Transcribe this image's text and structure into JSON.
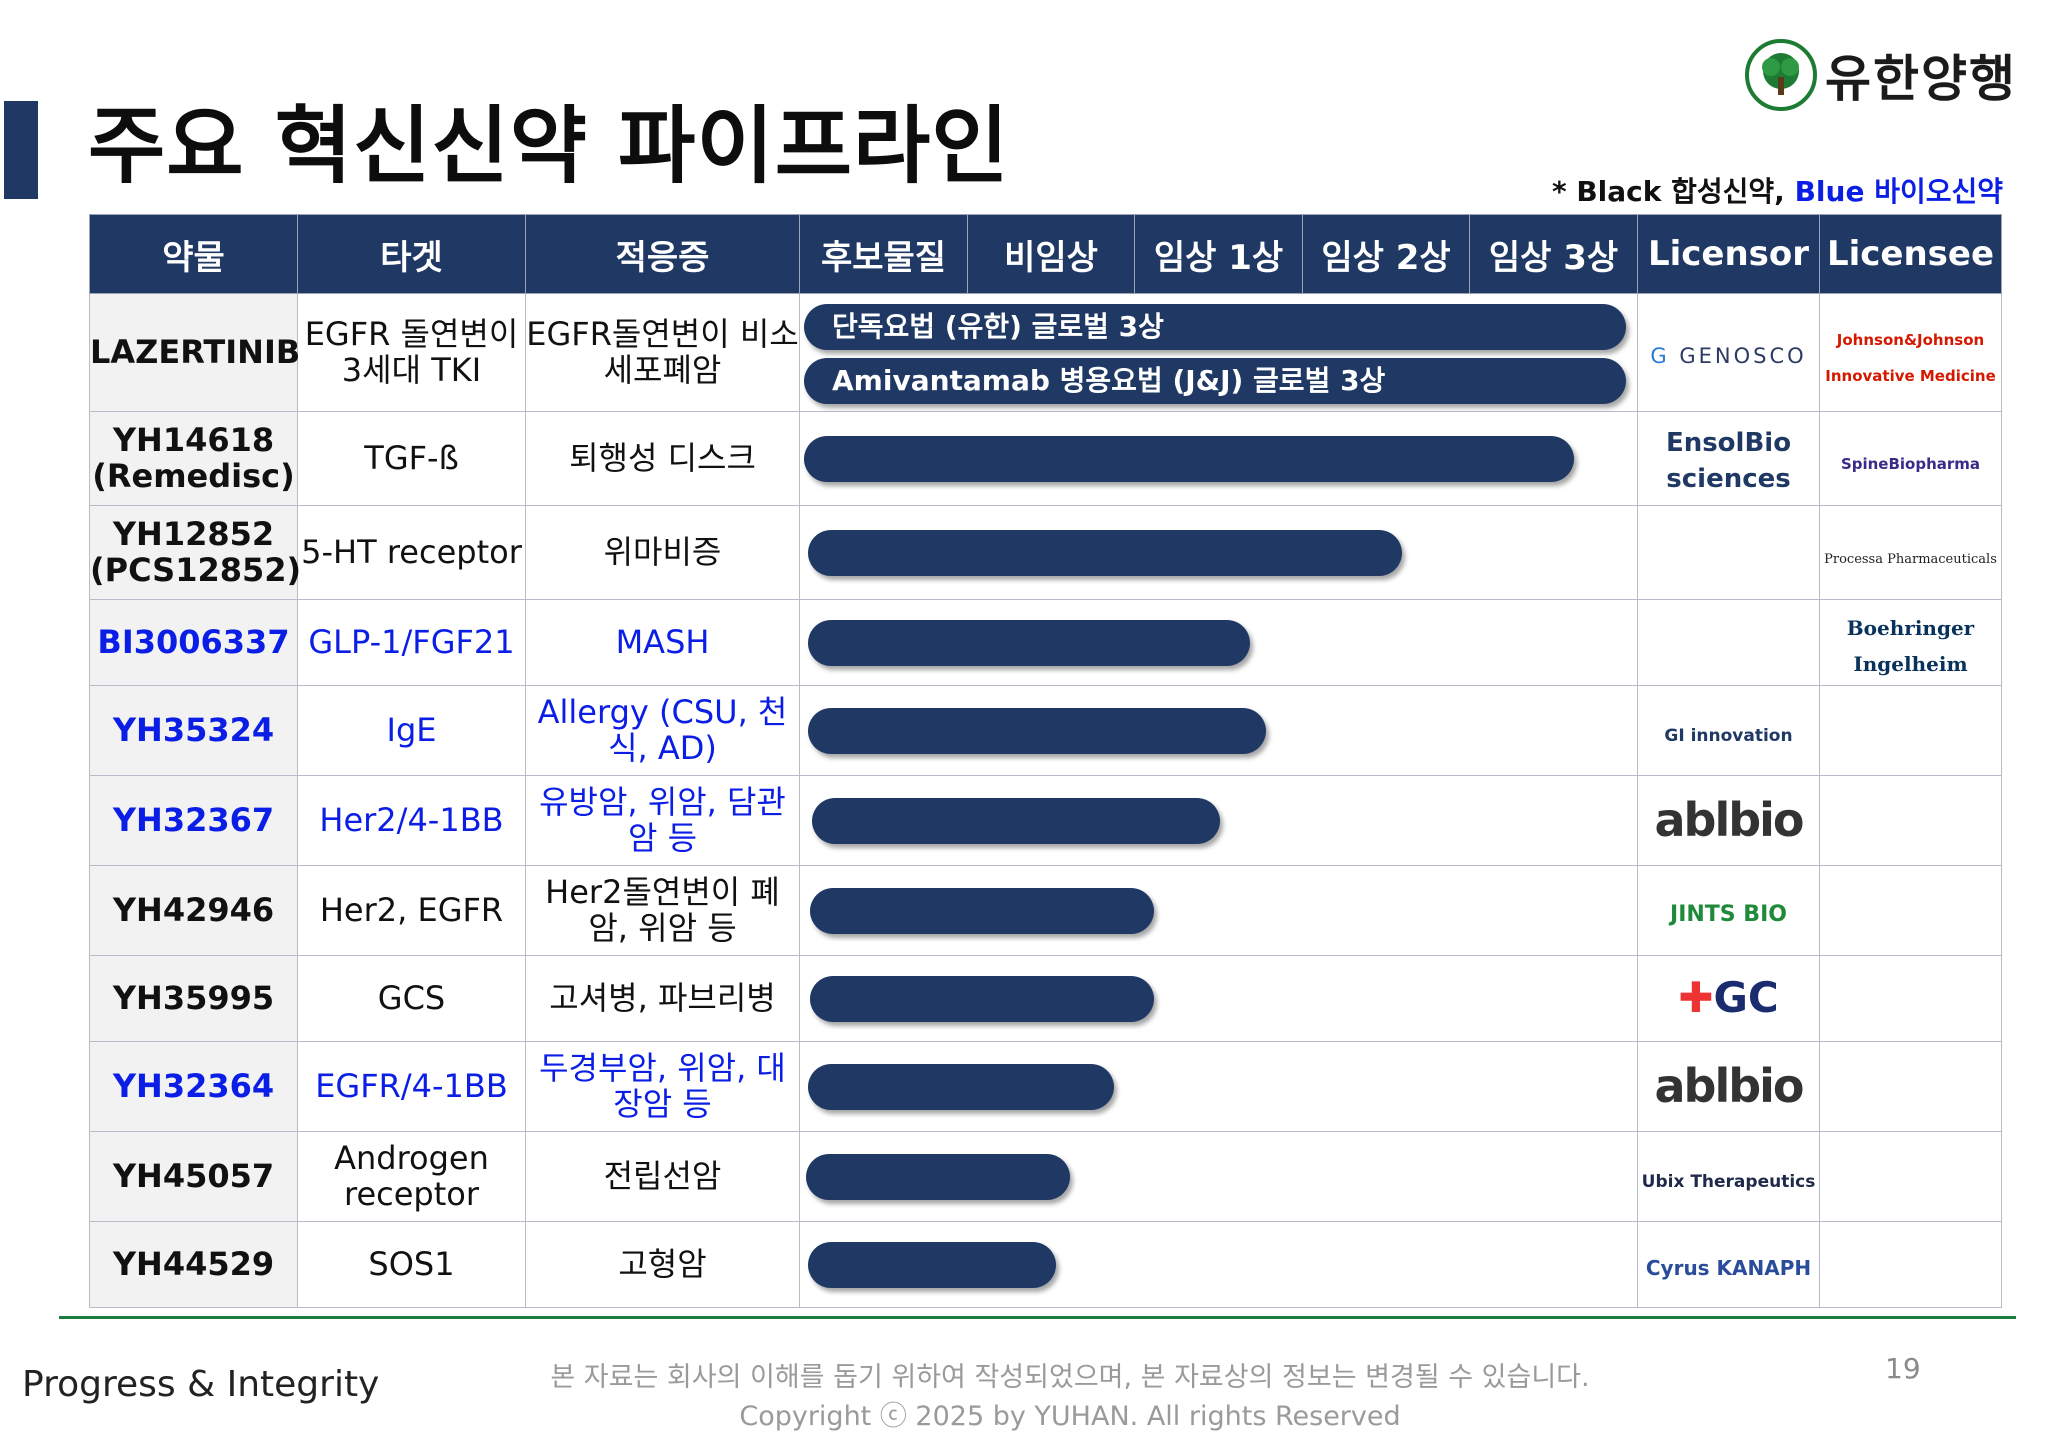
{
  "title": "주요 혁신신약 파이프라인",
  "company_logo_text": "유한양행",
  "legend": {
    "star": "*",
    "black_label": "Black 합성신약,",
    "blue_label": "Blue 바이오신약"
  },
  "headers": [
    "약물",
    "타겟",
    "적응증",
    "후보물질",
    "비임상",
    "임상 1상",
    "임상 2상",
    "임상 3상",
    "Licensor",
    "Licensee"
  ],
  "rows": [
    {
      "drug": "LAZERTINIB",
      "target": "EGFR 돌연변이 3세대 TKI",
      "indication": "EGFR돌연변이 비소세포폐암",
      "type": "black",
      "bars": [
        {
          "label": "단독요법 (유한) 글로벌 3상",
          "progress": "임상 3상"
        },
        {
          "label": "Amivantamab 병용요법 (J&J)  글로벌 3상",
          "progress": "임상 3상"
        }
      ],
      "licensor": "GENOSCO",
      "licensee": "Johnson&Johnson Innovative Medicine"
    },
    {
      "drug": "YH14618 (Remedisc)",
      "target": "TGF-ß",
      "indication": "퇴행성 디스크",
      "type": "black",
      "bars": [
        {
          "label": "",
          "progress": "임상 3상"
        }
      ],
      "licensor": "EnsolBio sciences",
      "licensee": "SpineBiopharma"
    },
    {
      "drug": "YH12852 (PCS12852)",
      "target": "5-HT receptor",
      "indication": "위마비증",
      "type": "black",
      "bars": [
        {
          "label": "",
          "progress": "임상 2상"
        }
      ],
      "licensor": "",
      "licensee": "Processa Pharmaceuticals"
    },
    {
      "drug": "BI3006337",
      "target": "GLP-1/FGF21",
      "indication": "MASH",
      "type": "blue",
      "bars": [
        {
          "label": "",
          "progress": "임상 1상"
        }
      ],
      "licensor": "",
      "licensee": "Boehringer Ingelheim"
    },
    {
      "drug": "YH35324",
      "target": "IgE",
      "indication": "Allergy (CSU, 천식, AD)",
      "type": "blue",
      "bars": [
        {
          "label": "",
          "progress": "임상 1상"
        }
      ],
      "licensor": "GI innovation",
      "licensee": ""
    },
    {
      "drug": "YH32367",
      "target": "Her2/4-1BB",
      "indication": "유방암, 위암, 담관암 등",
      "type": "blue",
      "bars": [
        {
          "label": "",
          "progress": "임상 1상"
        }
      ],
      "licensor": "ablbio",
      "licensee": ""
    },
    {
      "drug": "YH42946",
      "target": "Her2, EGFR",
      "indication": "Her2돌연변이 폐암, 위암 등",
      "type": "black",
      "bars": [
        {
          "label": "",
          "progress": "임상 1상"
        }
      ],
      "licensor": "JINTS BIO",
      "licensee": ""
    },
    {
      "drug": "YH35995",
      "target": "GCS",
      "indication": "고셔병, 파브리병",
      "type": "black",
      "bars": [
        {
          "label": "",
          "progress": "임상 1상"
        }
      ],
      "licensor": "GC",
      "licensee": ""
    },
    {
      "drug": "YH32364",
      "target": "EGFR/4-1BB",
      "indication": "두경부암, 위암, 대장암 등",
      "type": "blue",
      "bars": [
        {
          "label": "",
          "progress": "비임상"
        }
      ],
      "licensor": "ablbio",
      "licensee": ""
    },
    {
      "drug": "YH45057",
      "target": "Androgen receptor",
      "indication": "전립선암",
      "type": "black",
      "bars": [
        {
          "label": "",
          "progress": "비임상"
        }
      ],
      "licensor": "Ubix Therapeutics",
      "licensee": ""
    },
    {
      "drug": "YH44529",
      "target": "SOS1",
      "indication": "고형암",
      "type": "black",
      "bars": [
        {
          "label": "",
          "progress": "비임상"
        }
      ],
      "licensor": "Cyrus KANAPH",
      "licensee": ""
    }
  ],
  "footer": {
    "motto": "Progress & Integrity",
    "disclaimer_line1": "본 자료는 회사의 이해를 돕기 위하여 작성되었으며, 본 자료상의 정보는 변경될 수 있습니다.",
    "disclaimer_line2": "Copyright ⓒ 2025 by YUHAN.  All rights Reserved",
    "page": "19"
  },
  "colors": {
    "navy": "#1f3864",
    "blue_text": "#0b1ee6",
    "green_rule": "#1b7b3a"
  }
}
